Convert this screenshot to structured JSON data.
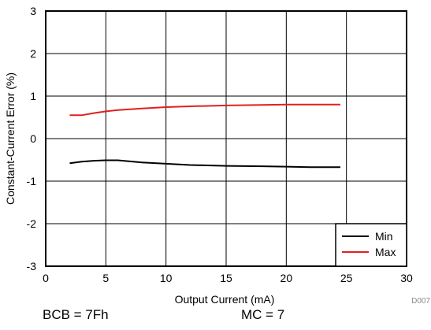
{
  "chart_data": {
    "type": "line",
    "title": "",
    "xlabel": "Output Current (mA)",
    "ylabel": "Constant-Current Error (%)",
    "xlim": [
      0,
      30
    ],
    "ylim": [
      -3,
      3
    ],
    "xticks": [
      "0",
      "5",
      "10",
      "15",
      "20",
      "25",
      "30"
    ],
    "yticks": [
      "3",
      "2",
      "1",
      "0",
      "-1",
      "-2",
      "-3"
    ],
    "grid": true,
    "legend_position": "bottom-right",
    "series": [
      {
        "name": "Min",
        "color": "#000000",
        "x": [
          2,
          3,
          4,
          5,
          6,
          8,
          10,
          12,
          15,
          18,
          20,
          22,
          24.5
        ],
        "y": [
          -0.58,
          -0.54,
          -0.52,
          -0.51,
          -0.51,
          -0.56,
          -0.59,
          -0.62,
          -0.64,
          -0.65,
          -0.66,
          -0.67,
          -0.67
        ]
      },
      {
        "name": "Max",
        "color": "#e02020",
        "x": [
          2,
          3,
          4,
          5,
          6,
          8,
          10,
          12,
          15,
          18,
          20,
          22,
          24.5
        ],
        "y": [
          0.55,
          0.55,
          0.6,
          0.64,
          0.67,
          0.71,
          0.74,
          0.76,
          0.78,
          0.79,
          0.8,
          0.8,
          0.8
        ]
      }
    ],
    "figure_id": "D007"
  },
  "footnotes": {
    "left": "BCB = 7Fh",
    "right": "MC = 7"
  }
}
